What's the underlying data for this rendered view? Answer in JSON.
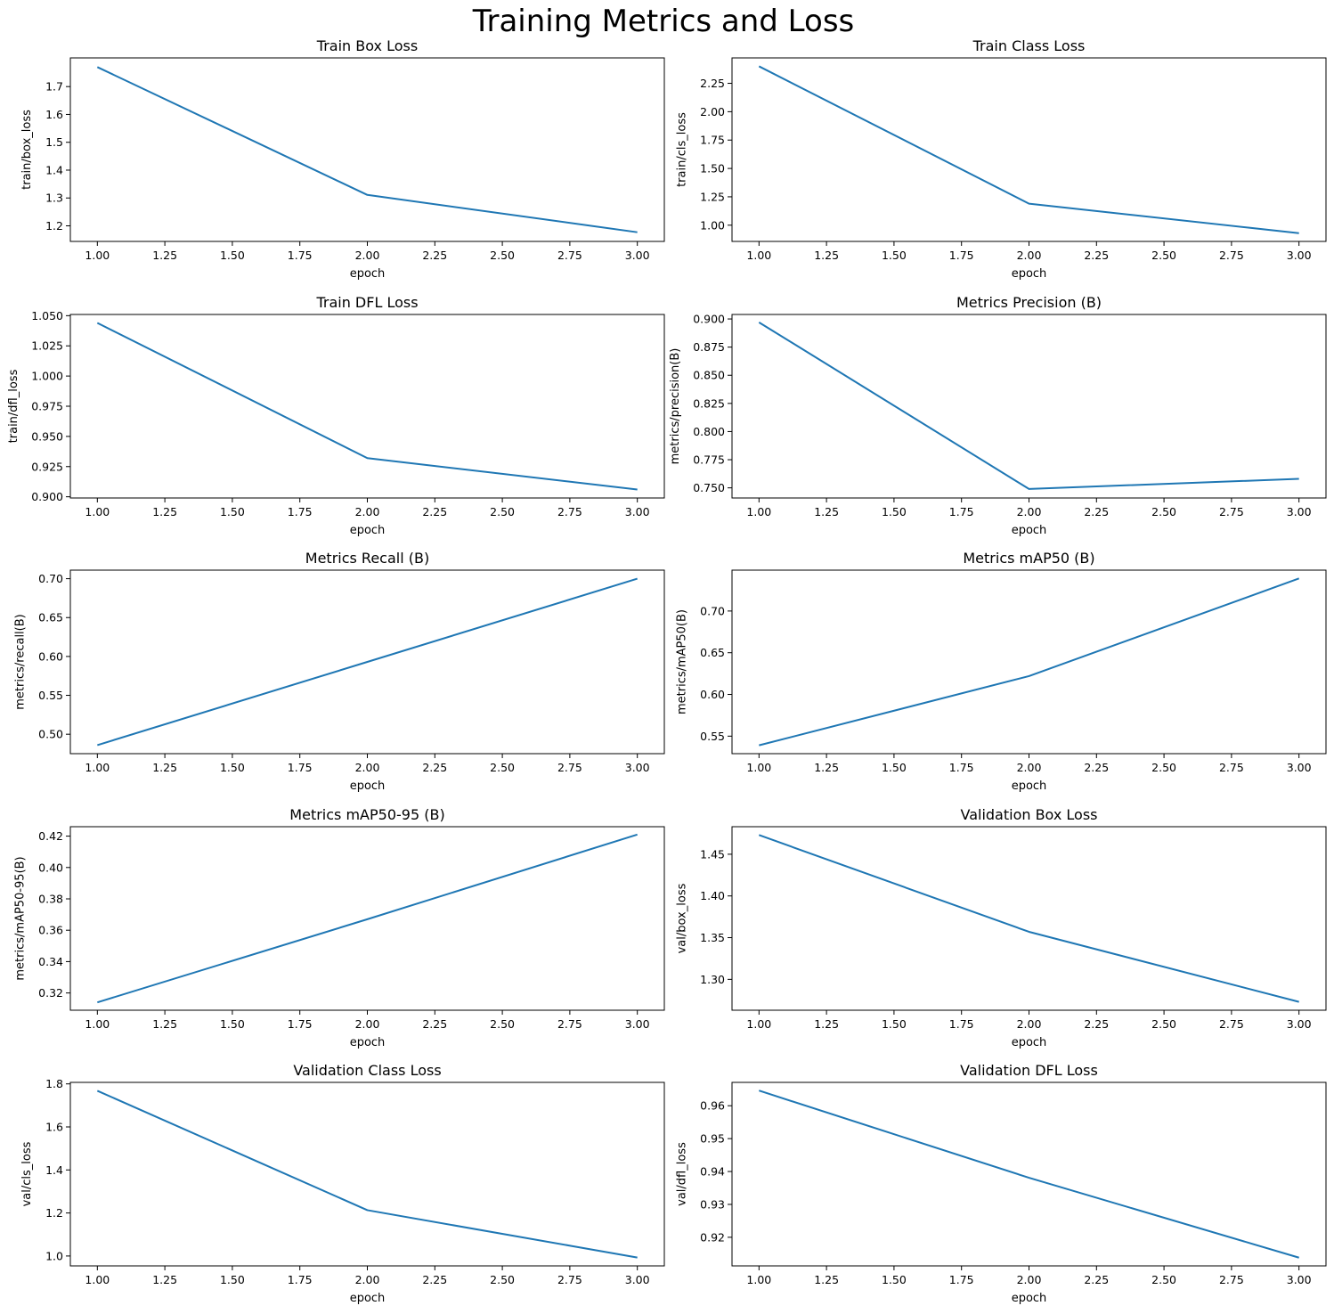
{
  "figure": {
    "title": "Training Metrics and Loss",
    "line_color": "#1f77b4"
  },
  "chart_data": [
    {
      "type": "line",
      "title": "Train Box Loss",
      "xlabel": "epoch",
      "ylabel": "train/box_loss",
      "x": [
        1,
        2,
        3
      ],
      "y": [
        1.77,
        1.311,
        1.177
      ],
      "xlim": [
        0.9,
        3.1
      ],
      "ylim": [
        1.144,
        1.803
      ],
      "xticks": [
        1.0,
        1.25,
        1.5,
        1.75,
        2.0,
        2.25,
        2.5,
        2.75,
        3.0
      ],
      "xtick_labels": [
        "1.00",
        "1.25",
        "1.50",
        "1.75",
        "2.00",
        "2.25",
        "2.50",
        "2.75",
        "3.00"
      ],
      "yticks": [
        1.2,
        1.3,
        1.4,
        1.5,
        1.6,
        1.7
      ],
      "ytick_labels": [
        "1.2",
        "1.3",
        "1.4",
        "1.5",
        "1.6",
        "1.7"
      ],
      "grid": false
    },
    {
      "type": "line",
      "title": "Train Class Loss",
      "xlabel": "epoch",
      "ylabel": "train/cls_loss",
      "x": [
        1,
        2,
        3
      ],
      "y": [
        2.4,
        1.19,
        0.93
      ],
      "xlim": [
        0.9,
        3.1
      ],
      "ylim": [
        0.857,
        2.474
      ],
      "xticks": [
        1.0,
        1.25,
        1.5,
        1.75,
        2.0,
        2.25,
        2.5,
        2.75,
        3.0
      ],
      "xtick_labels": [
        "1.00",
        "1.25",
        "1.50",
        "1.75",
        "2.00",
        "2.25",
        "2.50",
        "2.75",
        "3.00"
      ],
      "yticks": [
        1.0,
        1.25,
        1.5,
        1.75,
        2.0,
        2.25
      ],
      "ytick_labels": [
        "1.00",
        "1.25",
        "1.50",
        "1.75",
        "2.00",
        "2.25"
      ],
      "grid": false
    },
    {
      "type": "line",
      "title": "Train DFL Loss",
      "xlabel": "epoch",
      "ylabel": "train/dfl_loss",
      "x": [
        1,
        2,
        3
      ],
      "y": [
        1.044,
        0.932,
        0.906
      ],
      "xlim": [
        0.9,
        3.1
      ],
      "ylim": [
        0.899,
        1.051
      ],
      "xticks": [
        1.0,
        1.25,
        1.5,
        1.75,
        2.0,
        2.25,
        2.5,
        2.75,
        3.0
      ],
      "xtick_labels": [
        "1.00",
        "1.25",
        "1.50",
        "1.75",
        "2.00",
        "2.25",
        "2.50",
        "2.75",
        "3.00"
      ],
      "yticks": [
        0.9,
        0.925,
        0.95,
        0.975,
        1.0,
        1.025,
        1.05
      ],
      "ytick_labels": [
        "0.900",
        "0.925",
        "0.950",
        "0.975",
        "1.000",
        "1.025",
        "1.050"
      ],
      "grid": false
    },
    {
      "type": "line",
      "title": "Metrics Precision (B)",
      "xlabel": "epoch",
      "ylabel": "metrics/precision(B)",
      "x": [
        1,
        2,
        3
      ],
      "y": [
        0.897,
        0.749,
        0.758
      ],
      "xlim": [
        0.9,
        3.1
      ],
      "ylim": [
        0.741,
        0.904
      ],
      "xticks": [
        1.0,
        1.25,
        1.5,
        1.75,
        2.0,
        2.25,
        2.5,
        2.75,
        3.0
      ],
      "xtick_labels": [
        "1.00",
        "1.25",
        "1.50",
        "1.75",
        "2.00",
        "2.25",
        "2.50",
        "2.75",
        "3.00"
      ],
      "yticks": [
        0.75,
        0.775,
        0.8,
        0.825,
        0.85,
        0.875,
        0.9
      ],
      "ytick_labels": [
        "0.750",
        "0.775",
        "0.800",
        "0.825",
        "0.850",
        "0.875",
        "0.900"
      ],
      "grid": false
    },
    {
      "type": "line",
      "title": "Metrics Recall (B)",
      "xlabel": "epoch",
      "ylabel": "metrics/recall(B)",
      "x": [
        1,
        2,
        3
      ],
      "y": [
        0.486,
        0.593,
        0.7
      ],
      "xlim": [
        0.9,
        3.1
      ],
      "ylim": [
        0.475,
        0.711
      ],
      "xticks": [
        1.0,
        1.25,
        1.5,
        1.75,
        2.0,
        2.25,
        2.5,
        2.75,
        3.0
      ],
      "xtick_labels": [
        "1.00",
        "1.25",
        "1.50",
        "1.75",
        "2.00",
        "2.25",
        "2.50",
        "2.75",
        "3.00"
      ],
      "yticks": [
        0.5,
        0.55,
        0.6,
        0.65,
        0.7
      ],
      "ytick_labels": [
        "0.50",
        "0.55",
        "0.60",
        "0.65",
        "0.70"
      ],
      "grid": false
    },
    {
      "type": "line",
      "title": "Metrics mAP50 (B)",
      "xlabel": "epoch",
      "ylabel": "metrics/mAP50(B)",
      "x": [
        1,
        2,
        3
      ],
      "y": [
        0.539,
        0.622,
        0.739
      ],
      "xlim": [
        0.9,
        3.1
      ],
      "ylim": [
        0.529,
        0.749
      ],
      "xticks": [
        1.0,
        1.25,
        1.5,
        1.75,
        2.0,
        2.25,
        2.5,
        2.75,
        3.0
      ],
      "xtick_labels": [
        "1.00",
        "1.25",
        "1.50",
        "1.75",
        "2.00",
        "2.25",
        "2.50",
        "2.75",
        "3.00"
      ],
      "yticks": [
        0.55,
        0.6,
        0.65,
        0.7
      ],
      "ytick_labels": [
        "0.55",
        "0.60",
        "0.65",
        "0.70"
      ],
      "grid": false
    },
    {
      "type": "line",
      "title": "Metrics mAP50-95 (B)",
      "xlabel": "epoch",
      "ylabel": "metrics/mAP50-95(B)",
      "x": [
        1,
        2,
        3
      ],
      "y": [
        0.314,
        0.367,
        0.421
      ],
      "xlim": [
        0.9,
        3.1
      ],
      "ylim": [
        0.309,
        0.426
      ],
      "xticks": [
        1.0,
        1.25,
        1.5,
        1.75,
        2.0,
        2.25,
        2.5,
        2.75,
        3.0
      ],
      "xtick_labels": [
        "1.00",
        "1.25",
        "1.50",
        "1.75",
        "2.00",
        "2.25",
        "2.50",
        "2.75",
        "3.00"
      ],
      "yticks": [
        0.32,
        0.34,
        0.36,
        0.38,
        0.4,
        0.42
      ],
      "ytick_labels": [
        "0.32",
        "0.34",
        "0.36",
        "0.38",
        "0.40",
        "0.42"
      ],
      "grid": false
    },
    {
      "type": "line",
      "title": "Validation Box Loss",
      "xlabel": "epoch",
      "ylabel": "val/box_loss",
      "x": [
        1,
        2,
        3
      ],
      "y": [
        1.473,
        1.357,
        1.273
      ],
      "xlim": [
        0.9,
        3.1
      ],
      "ylim": [
        1.263,
        1.483
      ],
      "xticks": [
        1.0,
        1.25,
        1.5,
        1.75,
        2.0,
        2.25,
        2.5,
        2.75,
        3.0
      ],
      "xtick_labels": [
        "1.00",
        "1.25",
        "1.50",
        "1.75",
        "2.00",
        "2.25",
        "2.50",
        "2.75",
        "3.00"
      ],
      "yticks": [
        1.3,
        1.35,
        1.4,
        1.45
      ],
      "ytick_labels": [
        "1.30",
        "1.35",
        "1.40",
        "1.45"
      ],
      "grid": false
    },
    {
      "type": "line",
      "title": "Validation Class Loss",
      "xlabel": "epoch",
      "ylabel": "val/cls_loss",
      "x": [
        1,
        2,
        3
      ],
      "y": [
        1.768,
        1.213,
        0.993
      ],
      "xlim": [
        0.9,
        3.1
      ],
      "ylim": [
        0.954,
        1.807
      ],
      "xticks": [
        1.0,
        1.25,
        1.5,
        1.75,
        2.0,
        2.25,
        2.5,
        2.75,
        3.0
      ],
      "xtick_labels": [
        "1.00",
        "1.25",
        "1.50",
        "1.75",
        "2.00",
        "2.25",
        "2.50",
        "2.75",
        "3.00"
      ],
      "yticks": [
        1.0,
        1.2,
        1.4,
        1.6,
        1.8
      ],
      "ytick_labels": [
        "1.0",
        "1.2",
        "1.4",
        "1.6",
        "1.8"
      ],
      "grid": false
    },
    {
      "type": "line",
      "title": "Validation DFL Loss",
      "xlabel": "epoch",
      "ylabel": "val/dfl_loss",
      "x": [
        1,
        2,
        3
      ],
      "y": [
        0.9646,
        0.9381,
        0.9138
      ],
      "xlim": [
        0.9,
        3.1
      ],
      "ylim": [
        0.9113,
        0.9671
      ],
      "xticks": [
        1.0,
        1.25,
        1.5,
        1.75,
        2.0,
        2.25,
        2.5,
        2.75,
        3.0
      ],
      "xtick_labels": [
        "1.00",
        "1.25",
        "1.50",
        "1.75",
        "2.00",
        "2.25",
        "2.50",
        "2.75",
        "3.00"
      ],
      "yticks": [
        0.92,
        0.93,
        0.94,
        0.95,
        0.96
      ],
      "ytick_labels": [
        "0.92",
        "0.93",
        "0.94",
        "0.95",
        "0.96"
      ],
      "grid": false
    }
  ]
}
